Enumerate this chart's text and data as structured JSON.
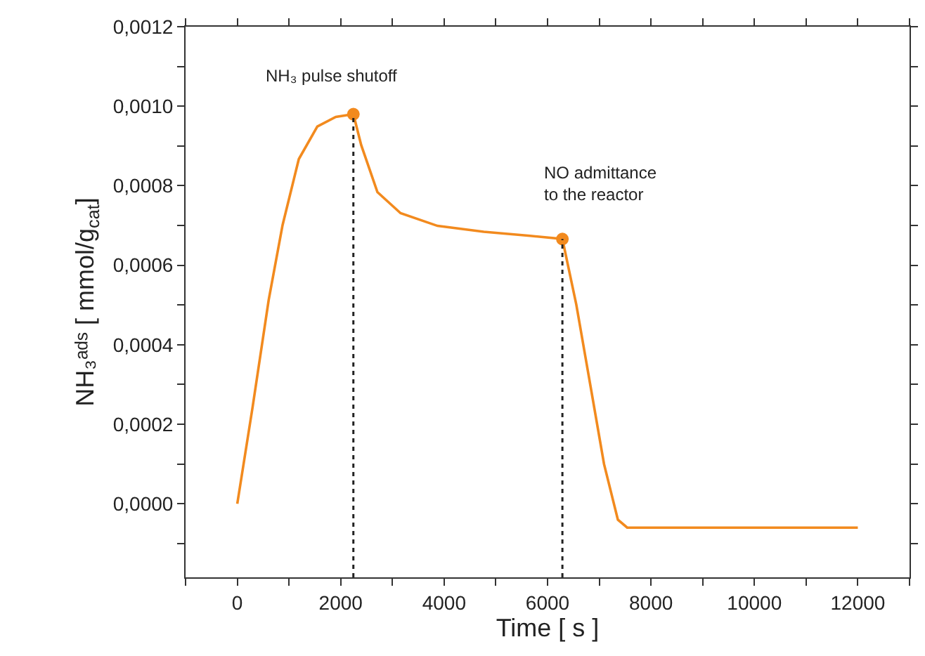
{
  "chart_data": {
    "type": "line",
    "xlabel": "Time [ s ]",
    "ylabel": "NH₃ᵃᵈˢ [ mmol/g$_{cat}$]",
    "series": [
      {
        "type": "line",
        "color": "#f28a1e",
        "marker": "none",
        "x": [
          0,
          295,
          608,
          876,
          1190,
          1548,
          1905,
          2245,
          2397,
          2710,
          3158,
          3872,
          4768,
          5662,
          6287,
          6556,
          6824,
          7092,
          7360,
          7540,
          8792,
          10400,
          12000
        ],
        "values": [
          0,
          0.000242,
          0.000513,
          0.000701,
          0.000867,
          0.000949,
          0.000973,
          0.00098,
          0.000902,
          0.000784,
          0.000731,
          0.000699,
          0.000684,
          0.000674,
          0.000666,
          0.000501,
          0.000301,
          0.0001,
          -4e-05,
          -6e-05,
          -6e-05,
          -6e-05,
          -6e-05
        ]
      },
      {
        "type": "scatter",
        "color": "#f28a1e",
        "marker": "circle",
        "x": [
          2245,
          6287
        ],
        "values": [
          0.00098,
          0.000666
        ]
      }
    ],
    "ref_lines": [
      {
        "axis": "x",
        "value": 2245,
        "color": "#222222",
        "line_style": "dotted"
      },
      {
        "axis": "x",
        "value": 6287,
        "color": "#222222",
        "line_style": "dotted"
      }
    ],
    "annotations": [
      {
        "text": "NH₃ pulse shutoff",
        "x": 2245,
        "y": 0.00098
      },
      {
        "text": "NO admittance\nto the reactor",
        "x": 6287,
        "y": 0.000666
      }
    ],
    "xlim": [
      -1000,
      13000
    ],
    "ylim": [
      -0.000185,
      0.0012
    ],
    "xticks": [
      {
        "value": -1000,
        "label": null
      },
      0,
      {
        "value": 1000,
        "label": null
      },
      2000,
      {
        "value": 3000,
        "label": null
      },
      4000,
      {
        "value": 5000,
        "label": null
      },
      6000,
      {
        "value": 7000,
        "label": null
      },
      8000,
      {
        "value": 9000,
        "label": null
      },
      10000,
      {
        "value": 11000,
        "label": null
      },
      12000,
      {
        "value": 13000,
        "label": null
      }
    ],
    "yticks": [
      {
        "value": -0.0001,
        "label": null
      },
      {
        "value": 0,
        "label": "0,0000"
      },
      {
        "value": 0.0001,
        "label": null
      },
      {
        "value": 0.0002,
        "label": "0,0002"
      },
      {
        "value": 0.0003,
        "label": null
      },
      {
        "value": 0.0004,
        "label": "0,0004"
      },
      {
        "value": 0.0005,
        "label": null
      },
      {
        "value": 0.0006,
        "label": "0,0006"
      },
      {
        "value": 0.0007,
        "label": null
      },
      {
        "value": 0.0008,
        "label": "0,0008"
      },
      {
        "value": 0.0009,
        "label": null
      },
      {
        "value": 0.001,
        "label": "0,0010"
      },
      {
        "value": 0.0011,
        "label": null
      },
      {
        "value": 0.0012,
        "label": "0,0012"
      }
    ]
  }
}
